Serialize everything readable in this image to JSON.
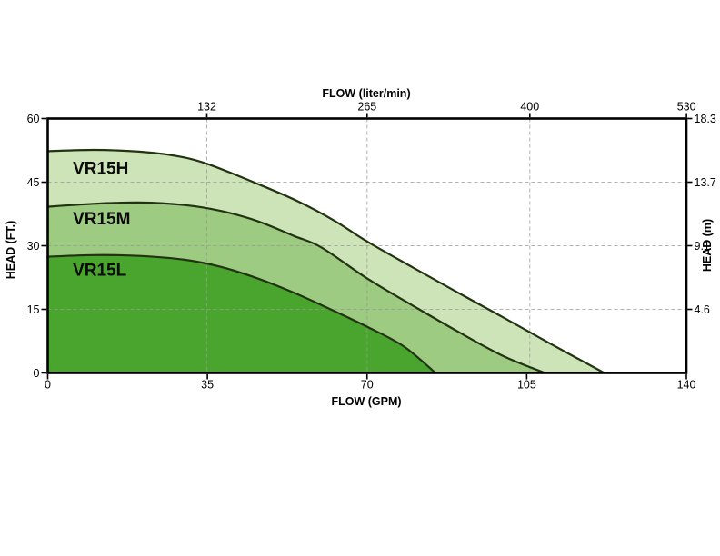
{
  "chart_data": {
    "type": "area",
    "description": "Pump performance curves: head vs flow for three pump models",
    "x_bottom": {
      "label": "FLOW (GPM)",
      "ticks": [
        0,
        35,
        70,
        105,
        140
      ],
      "range": [
        0,
        140
      ]
    },
    "x_top": {
      "label": "FLOW (liter/min)",
      "ticks": [
        132,
        265,
        400,
        530
      ],
      "lmin_per_gpm": 3.785
    },
    "y_left": {
      "label": "HEAD (FT.)",
      "ticks": [
        0,
        15,
        30,
        45,
        60
      ],
      "range": [
        0,
        60
      ]
    },
    "y_right": {
      "label": "HEAD (m)",
      "ticks": [
        {
          "ft": 15,
          "label": "4.6"
        },
        {
          "ft": 30,
          "label": "9.1"
        },
        {
          "ft": 45,
          "label": "13.7"
        },
        {
          "ft": 60,
          "label": "18.3"
        }
      ]
    },
    "grid": {
      "horizontal_ft": [
        15,
        30,
        45
      ],
      "vertical_lmin": [
        132,
        265,
        400
      ]
    },
    "series": [
      {
        "name": "VR15H",
        "fill": "#cde3b8",
        "shutoff_head_ft": 52.3,
        "max_flow_gpm": 122,
        "points_gpm_ft": [
          [
            0,
            52.3
          ],
          [
            10,
            52.6
          ],
          [
            20,
            52.2
          ],
          [
            28,
            51.2
          ],
          [
            35,
            49.3
          ],
          [
            46,
            44.6
          ],
          [
            55,
            40.4
          ],
          [
            63,
            35.8
          ],
          [
            70,
            31
          ],
          [
            80,
            24.9
          ],
          [
            90,
            18.9
          ],
          [
            100,
            13
          ],
          [
            110,
            7
          ],
          [
            122,
            0
          ]
        ],
        "label_at_gpm_ft": [
          5.5,
          48.2
        ]
      },
      {
        "name": "VR15M",
        "fill": "#9ccb81",
        "shutoff_head_ft": 39.2,
        "max_flow_gpm": 109,
        "points_gpm_ft": [
          [
            0,
            39.2
          ],
          [
            10,
            39.9
          ],
          [
            20,
            40.2
          ],
          [
            30,
            39.6
          ],
          [
            38,
            38.2
          ],
          [
            46,
            35.8
          ],
          [
            54,
            32.3
          ],
          [
            60,
            29.6
          ],
          [
            70,
            22.3
          ],
          [
            80,
            15.9
          ],
          [
            90,
            9.7
          ],
          [
            100,
            3.9
          ],
          [
            109,
            0
          ]
        ],
        "label_at_gpm_ft": [
          5.5,
          36.3
        ]
      },
      {
        "name": "VR15L",
        "fill": "#49a52e",
        "shutoff_head_ft": 27.4,
        "max_flow_gpm": 85,
        "points_gpm_ft": [
          [
            0,
            27.4
          ],
          [
            10,
            27.8
          ],
          [
            20,
            27.6
          ],
          [
            30,
            26.7
          ],
          [
            38,
            25
          ],
          [
            46,
            22.3
          ],
          [
            54,
            18.9
          ],
          [
            62,
            15
          ],
          [
            70,
            10.9
          ],
          [
            78,
            6.3
          ],
          [
            85,
            0
          ]
        ],
        "label_at_gpm_ft": [
          5.5,
          24.2
        ]
      }
    ],
    "style": {
      "curve_color": "#223311",
      "grid_color": "#999999",
      "axis_color": "#000000",
      "background": "#ffffff"
    }
  }
}
